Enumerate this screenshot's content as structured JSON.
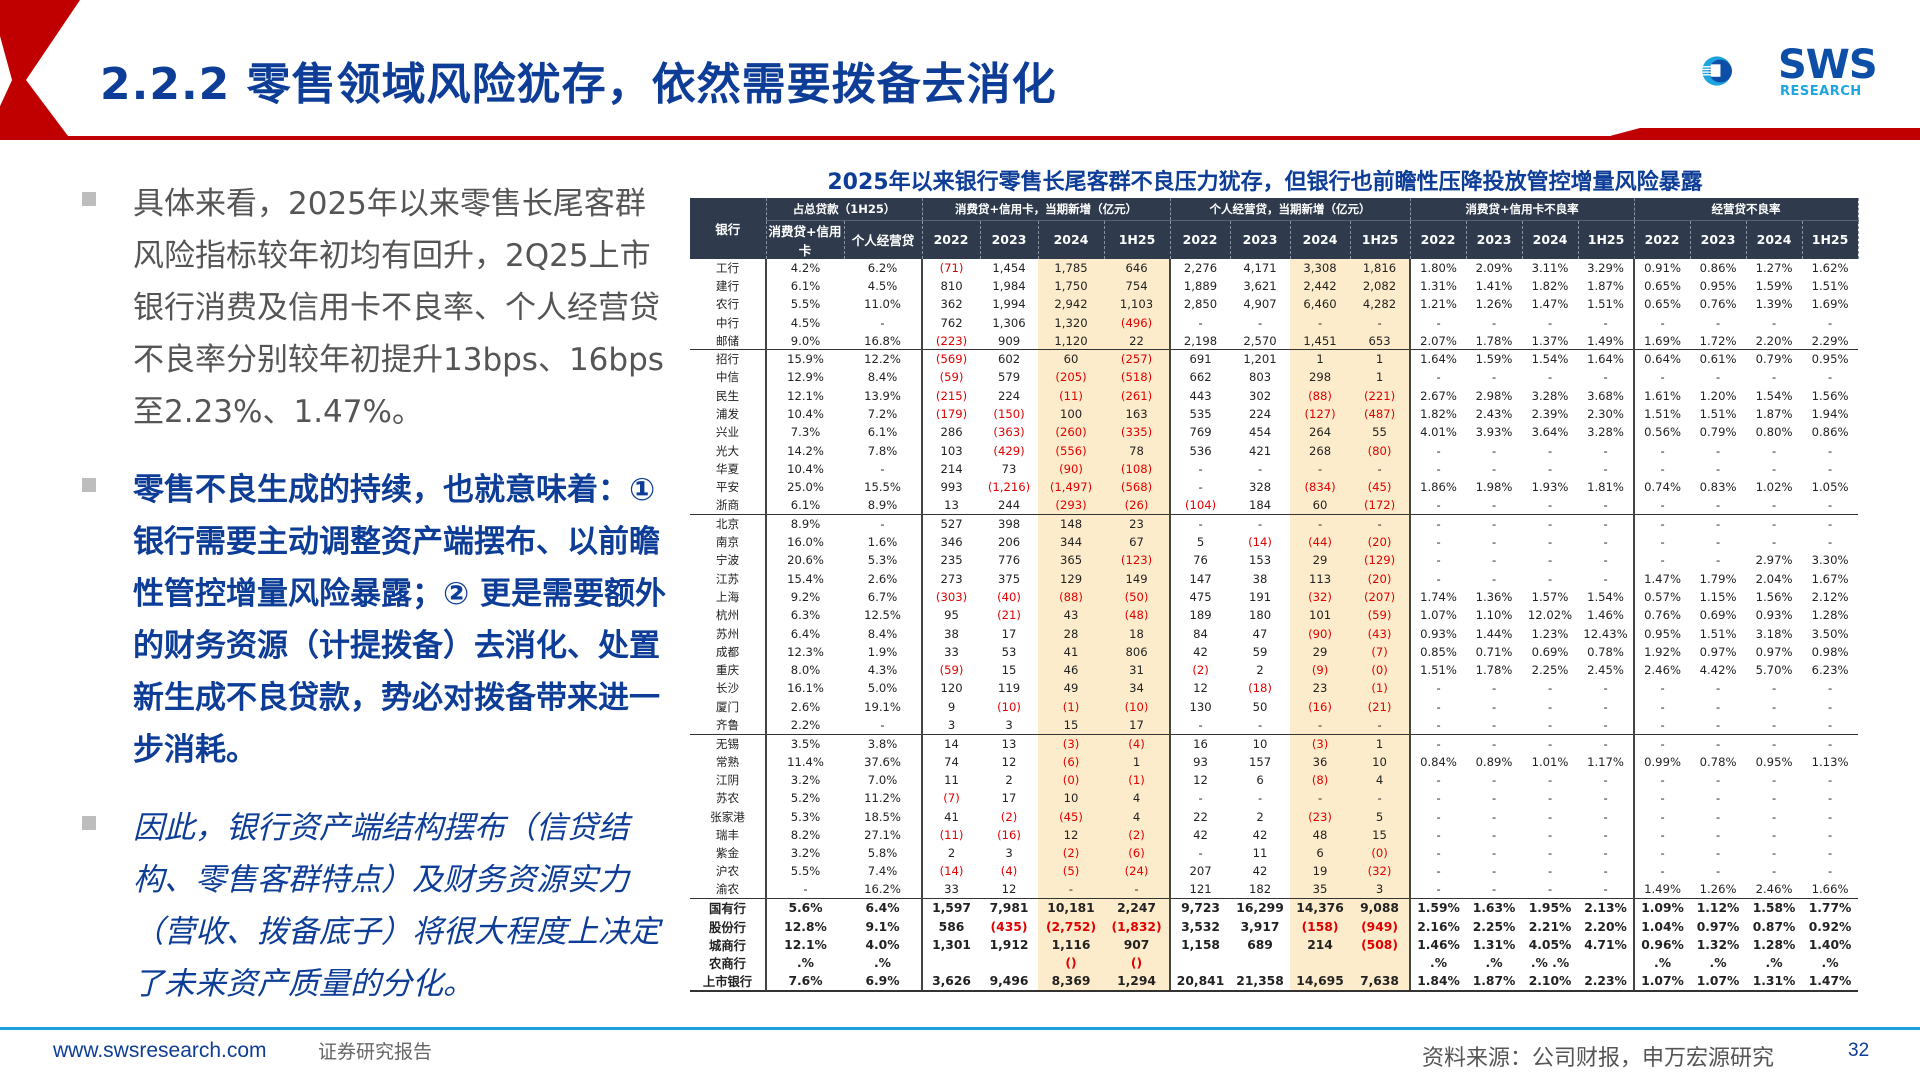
{
  "header": {
    "title": "2.2.2 零售领域风险犹存，依然需要拨备去消化",
    "logo_text": "SWS",
    "logo_sub": "RESEARCH",
    "colors": {
      "title": "#0d3d96",
      "accent_red": "#c00000",
      "logo_blue": "#0d4ea6",
      "logo_cyan": "#1ea5e0"
    }
  },
  "bullets": [
    {
      "text": "具体来看，2025年以来零售长尾客群风险指标较年初均有回升，2Q25上市银行消费及信用卡不良率、个人经营贷不良率分别较年初提升13bps、16bps至2.23%、1.47%。",
      "style": "normal"
    },
    {
      "text": "零售不良生成的持续，也就意味着：① 银行需要主动调整资产端摆布、以前瞻性管控增量风险暴露；② 更是需要额外的财务资源（计提拨备）去消化、处置新生成不良贷款，势必对拨备带来进一步消耗。",
      "style": "bold"
    },
    {
      "text": "因此，银行资产端结构摆布（信贷结构、零售客群特点）及财务资源实力（营收、拨备底子）将很大程度上决定了未来资产质量的分化。",
      "style": "italic"
    }
  ],
  "table": {
    "title": "2025年以来银行零售长尾客群不良压力犹存，但银行也前瞻性压降投放管控增量风险暴露",
    "group_headers": [
      "银行",
      "占总贷款（1H25）",
      "消费贷+信用卡，当期新增（亿元）",
      "个人经营贷，当期新增（亿元）",
      "消费贷+信用卡不良率",
      "经营贷不良率"
    ],
    "sub_headers": [
      "消费贷+信用卡",
      "个人经营贷",
      "2022",
      "2023",
      "2024",
      "1H25",
      "2022",
      "2023",
      "2024",
      "1H25",
      "2022",
      "2023",
      "2024",
      "1H25",
      "2022",
      "2023",
      "2024",
      "1H25"
    ],
    "rows": [
      [
        "工行",
        "4.2%",
        "6.2%",
        "(71)",
        "1,454",
        "1,785",
        "646",
        "2,276",
        "4,171",
        "3,308",
        "1,816",
        "1.80%",
        "2.09%",
        "3.11%",
        "3.29%",
        "0.91%",
        "0.86%",
        "1.27%",
        "1.62%"
      ],
      [
        "建行",
        "6.1%",
        "4.5%",
        "810",
        "1,984",
        "1,750",
        "754",
        "1,889",
        "3,621",
        "2,442",
        "2,082",
        "1.31%",
        "1.41%",
        "1.82%",
        "1.87%",
        "0.65%",
        "0.95%",
        "1.59%",
        "1.51%"
      ],
      [
        "农行",
        "5.5%",
        "11.0%",
        "362",
        "1,994",
        "2,942",
        "1,103",
        "2,850",
        "4,907",
        "6,460",
        "4,282",
        "1.21%",
        "1.26%",
        "1.47%",
        "1.51%",
        "0.65%",
        "0.76%",
        "1.39%",
        "1.69%"
      ],
      [
        "中行",
        "4.5%",
        "-",
        "762",
        "1,306",
        "1,320",
        "(496)",
        "-",
        "-",
        "-",
        "-",
        "-",
        "-",
        "-",
        "-",
        "-",
        "-",
        "-",
        "-"
      ],
      [
        "邮储",
        "9.0%",
        "16.8%",
        "(223)",
        "909",
        "1,120",
        "22",
        "2,198",
        "2,570",
        "1,451",
        "653",
        "2.07%",
        "1.78%",
        "1.37%",
        "1.49%",
        "1.69%",
        "1.72%",
        "2.20%",
        "2.29%"
      ],
      [
        "招行",
        "15.9%",
        "12.2%",
        "(569)",
        "602",
        "60",
        "(257)",
        "691",
        "1,201",
        "1",
        "1",
        "1.64%",
        "1.59%",
        "1.54%",
        "1.64%",
        "0.64%",
        "0.61%",
        "0.79%",
        "0.95%"
      ],
      [
        "中信",
        "12.9%",
        "8.4%",
        "(59)",
        "579",
        "(205)",
        "(518)",
        "662",
        "803",
        "298",
        "1",
        "-",
        "-",
        "-",
        "-",
        "-",
        "-",
        "-",
        "-"
      ],
      [
        "民生",
        "12.1%",
        "13.9%",
        "(215)",
        "224",
        "(11)",
        "(261)",
        "443",
        "302",
        "(88)",
        "(221)",
        "2.67%",
        "2.98%",
        "3.28%",
        "3.68%",
        "1.61%",
        "1.20%",
        "1.54%",
        "1.56%"
      ],
      [
        "浦发",
        "10.4%",
        "7.2%",
        "(179)",
        "(150)",
        "100",
        "163",
        "535",
        "224",
        "(127)",
        "(487)",
        "1.82%",
        "2.43%",
        "2.39%",
        "2.30%",
        "1.51%",
        "1.51%",
        "1.87%",
        "1.94%"
      ],
      [
        "兴业",
        "7.3%",
        "6.1%",
        "286",
        "(363)",
        "(260)",
        "(335)",
        "769",
        "454",
        "264",
        "55",
        "4.01%",
        "3.93%",
        "3.64%",
        "3.28%",
        "0.56%",
        "0.79%",
        "0.80%",
        "0.86%"
      ],
      [
        "光大",
        "14.2%",
        "7.8%",
        "103",
        "(429)",
        "(556)",
        "78",
        "536",
        "421",
        "268",
        "(80)",
        "-",
        "-",
        "-",
        "-",
        "-",
        "-",
        "-",
        "-"
      ],
      [
        "华夏",
        "10.4%",
        "-",
        "214",
        "73",
        "(90)",
        "(108)",
        "-",
        "-",
        "-",
        "-",
        "-",
        "-",
        "-",
        "-",
        "-",
        "-",
        "-",
        "-"
      ],
      [
        "平安",
        "25.0%",
        "15.5%",
        "993",
        "(1,216)",
        "(1,497)",
        "(568)",
        "-",
        "328",
        "(834)",
        "(45)",
        "1.86%",
        "1.98%",
        "1.93%",
        "1.81%",
        "0.74%",
        "0.83%",
        "1.02%",
        "1.05%"
      ],
      [
        "浙商",
        "6.1%",
        "8.9%",
        "13",
        "244",
        "(293)",
        "(26)",
        "(104)",
        "184",
        "60",
        "(172)",
        "-",
        "-",
        "-",
        "-",
        "-",
        "-",
        "-",
        "-"
      ],
      [
        "北京",
        "8.9%",
        "-",
        "527",
        "398",
        "148",
        "23",
        "-",
        "-",
        "-",
        "-",
        "-",
        "-",
        "-",
        "-",
        "-",
        "-",
        "-",
        "-"
      ],
      [
        "南京",
        "16.0%",
        "1.6%",
        "346",
        "206",
        "344",
        "67",
        "5",
        "(14)",
        "(44)",
        "(20)",
        "-",
        "-",
        "-",
        "-",
        "-",
        "-",
        "-",
        "-"
      ],
      [
        "宁波",
        "20.6%",
        "5.3%",
        "235",
        "776",
        "365",
        "(123)",
        "76",
        "153",
        "29",
        "(129)",
        "-",
        "-",
        "-",
        "-",
        "-",
        "-",
        "2.97%",
        "3.30%"
      ],
      [
        "江苏",
        "15.4%",
        "2.6%",
        "273",
        "375",
        "129",
        "149",
        "147",
        "38",
        "113",
        "(20)",
        "-",
        "-",
        "-",
        "-",
        "1.47%",
        "1.79%",
        "2.04%",
        "1.67%"
      ],
      [
        "上海",
        "9.2%",
        "6.7%",
        "(303)",
        "(40)",
        "(88)",
        "(50)",
        "475",
        "191",
        "(32)",
        "(207)",
        "1.74%",
        "1.36%",
        "1.57%",
        "1.54%",
        "0.57%",
        "1.15%",
        "1.56%",
        "2.12%"
      ],
      [
        "杭州",
        "6.3%",
        "12.5%",
        "95",
        "(21)",
        "43",
        "(48)",
        "189",
        "180",
        "101",
        "(59)",
        "1.07%",
        "1.10%",
        "12.02%",
        "1.46%",
        "0.76%",
        "0.69%",
        "0.93%",
        "1.28%"
      ],
      [
        "苏州",
        "6.4%",
        "8.4%",
        "38",
        "17",
        "28",
        "18",
        "84",
        "47",
        "(90)",
        "(43)",
        "0.93%",
        "1.44%",
        "1.23%",
        "12.43%",
        "0.95%",
        "1.51%",
        "3.18%",
        "3.50%"
      ],
      [
        "成都",
        "12.3%",
        "1.9%",
        "33",
        "53",
        "41",
        "806",
        "42",
        "59",
        "29",
        "(7)",
        "0.85%",
        "0.71%",
        "0.69%",
        "0.78%",
        "1.92%",
        "0.97%",
        "0.97%",
        "0.98%"
      ],
      [
        "重庆",
        "8.0%",
        "4.3%",
        "(59)",
        "15",
        "46",
        "31",
        "(2)",
        "2",
        "(9)",
        "(0)",
        "1.51%",
        "1.78%",
        "2.25%",
        "2.45%",
        "2.46%",
        "4.42%",
        "5.70%",
        "6.23%"
      ],
      [
        "长沙",
        "16.1%",
        "5.0%",
        "120",
        "119",
        "49",
        "34",
        "12",
        "(18)",
        "23",
        "(1)",
        "-",
        "-",
        "-",
        "-",
        "-",
        "-",
        "-",
        "-"
      ],
      [
        "厦门",
        "2.6%",
        "19.1%",
        "9",
        "(10)",
        "(1)",
        "(10)",
        "130",
        "50",
        "(16)",
        "(21)",
        "-",
        "-",
        "-",
        "-",
        "-",
        "-",
        "-",
        "-"
      ],
      [
        "齐鲁",
        "2.2%",
        "-",
        "3",
        "3",
        "15",
        "17",
        "-",
        "-",
        "-",
        "-",
        "-",
        "-",
        "-",
        "-",
        "-",
        "-",
        "-",
        "-"
      ],
      [
        "无锡",
        "3.5%",
        "3.8%",
        "14",
        "13",
        "(3)",
        "(4)",
        "16",
        "10",
        "(3)",
        "1",
        "-",
        "-",
        "-",
        "-",
        "-",
        "-",
        "-",
        "-"
      ],
      [
        "常熟",
        "11.4%",
        "37.6%",
        "74",
        "12",
        "(6)",
        "1",
        "93",
        "157",
        "36",
        "10",
        "0.84%",
        "0.89%",
        "1.01%",
        "1.17%",
        "0.99%",
        "0.78%",
        "0.95%",
        "1.13%"
      ],
      [
        "江阴",
        "3.2%",
        "7.0%",
        "11",
        "2",
        "(0)",
        "(1)",
        "12",
        "6",
        "(8)",
        "4",
        "-",
        "-",
        "-",
        "-",
        "-",
        "-",
        "-",
        "-"
      ],
      [
        "苏农",
        "5.2%",
        "11.2%",
        "(7)",
        "17",
        "10",
        "4",
        "-",
        "-",
        "-",
        "-",
        "-",
        "-",
        "-",
        "-",
        "-",
        "-",
        "-",
        "-"
      ],
      [
        "张家港",
        "5.3%",
        "18.5%",
        "41",
        "(2)",
        "(45)",
        "4",
        "22",
        "2",
        "(23)",
        "5",
        "-",
        "-",
        "-",
        "-",
        "-",
        "-",
        "-",
        "-"
      ],
      [
        "瑞丰",
        "8.2%",
        "27.1%",
        "(11)",
        "(16)",
        "12",
        "(2)",
        "42",
        "42",
        "48",
        "15",
        "-",
        "-",
        "-",
        "-",
        "-",
        "-",
        "-",
        "-"
      ],
      [
        "紫金",
        "3.2%",
        "5.8%",
        "2",
        "3",
        "(2)",
        "(6)",
        "-",
        "11",
        "6",
        "(0)",
        "-",
        "-",
        "-",
        "-",
        "-",
        "-",
        "-",
        "-"
      ],
      [
        "沪农",
        "5.5%",
        "7.4%",
        "(14)",
        "(4)",
        "(5)",
        "(24)",
        "207",
        "42",
        "19",
        "(32)",
        "-",
        "-",
        "-",
        "-",
        "-",
        "-",
        "-",
        "-"
      ],
      [
        "渝农",
        "-",
        "16.2%",
        "33",
        "12",
        "-",
        "-",
        "121",
        "182",
        "35",
        "3",
        "-",
        "-",
        "-",
        "-",
        "1.49%",
        "1.26%",
        "2.46%",
        "1.66%"
      ],
      [
        "国有行",
        "5.6%",
        "6.4%",
        "1,597",
        "7,981",
        "10,181",
        "2,247",
        "9,723",
        "16,299",
        "14,376",
        "9,088",
        "1.59%",
        "1.63%",
        "1.95%",
        "2.13%",
        "1.09%",
        "1.12%",
        "1.58%",
        "1.77%"
      ],
      [
        "股份行",
        "12.8%",
        "9.1%",
        "586",
        "(435)",
        "(2,752)",
        "(1,832)",
        "3,532",
        "3,917",
        "(158)",
        "(949)",
        "2.16%",
        "2.25%",
        "2.21%",
        "2.20%",
        "1.04%",
        "0.97%",
        "0.87%",
        "0.92%"
      ],
      [
        "城商行",
        "12.1%",
        "4.0%",
        "1,301",
        "1,912",
        "1,116",
        "907",
        "1,158",
        "689",
        "214",
        "(508)",
        "1.46%",
        "1.31%",
        "4.05%",
        "4.71%",
        "0.96%",
        "1.32%",
        "1.28%",
        "1.40%"
      ],
      [
        "农商行",
        ".%",
        ".%",
        "",
        "",
        "()",
        "()",
        "",
        "",
        "",
        "",
        ".%",
        ".%",
        ".% .%",
        "",
        ".%",
        ".%",
        ".%",
        ".%"
      ],
      [
        "上市银行",
        "7.6%",
        "6.9%",
        "3,626",
        "9,496",
        "8,369",
        "1,294",
        "20,841",
        "21,358",
        "14,695",
        "7,638",
        "1.84%",
        "1.87%",
        "2.10%",
        "2.23%",
        "1.07%",
        "1.07%",
        "1.31%",
        "1.47%"
      ]
    ],
    "group_end_rows": [
      4,
      13,
      25,
      34
    ],
    "summary_start_row": 35
  },
  "footer": {
    "url": "www.swsresearch.com",
    "report_type": "证券研究报告",
    "source": "资料来源：公司财报，申万宏源研究",
    "page": "32"
  }
}
